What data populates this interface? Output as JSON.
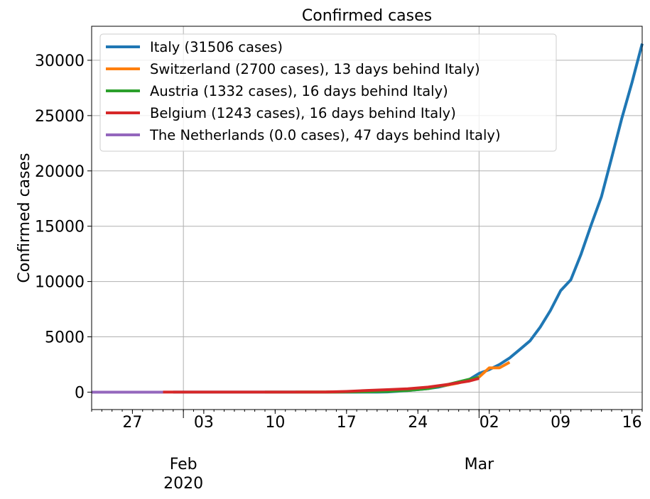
{
  "chart_data": {
    "type": "line",
    "title": "Confirmed cases",
    "xlabel": "",
    "ylabel": "Confirmed cases",
    "xlim": [
      "2020-01-23",
      "2020-03-17"
    ],
    "ylim": [
      -1575,
      33075
    ],
    "grid": true,
    "legend_position": "top-left",
    "y_ticks": [
      0,
      5000,
      10000,
      15000,
      20000,
      25000,
      30000
    ],
    "y_tick_labels": [
      "0",
      "5000",
      "10000",
      "15000",
      "20000",
      "25000",
      "30000"
    ],
    "x_major_ticks": [
      "2020-02-01",
      "2020-03-01"
    ],
    "x_ticks": [
      "2020-01-27",
      "2020-02-03",
      "2020-02-10",
      "2020-02-17",
      "2020-02-24",
      "2020-03-02",
      "2020-03-09",
      "2020-03-16"
    ],
    "x_tick_labels": [
      "27",
      "03",
      "10",
      "17",
      "24",
      "02",
      "09",
      "16"
    ],
    "x_secondary_labels": [
      {
        "x": "2020-02-01",
        "lines": [
          "Feb",
          "2020"
        ]
      },
      {
        "x": "2020-03-01",
        "lines": [
          "Mar"
        ]
      }
    ],
    "series": [
      {
        "name": "Italy (31506 cases)",
        "color": "#1f77b4",
        "points": [
          [
            "2020-01-31",
            2
          ],
          [
            "2020-02-10",
            3
          ],
          [
            "2020-02-20",
            3
          ],
          [
            "2020-02-21",
            20
          ],
          [
            "2020-02-22",
            79
          ],
          [
            "2020-02-23",
            150
          ],
          [
            "2020-02-24",
            229
          ],
          [
            "2020-02-25",
            322
          ],
          [
            "2020-02-26",
            453
          ],
          [
            "2020-02-27",
            655
          ],
          [
            "2020-02-28",
            888
          ],
          [
            "2020-02-29",
            1128
          ],
          [
            "2020-03-01",
            1694
          ],
          [
            "2020-03-02",
            2036
          ],
          [
            "2020-03-03",
            2502
          ],
          [
            "2020-03-04",
            3089
          ],
          [
            "2020-03-05",
            3858
          ],
          [
            "2020-03-06",
            4636
          ],
          [
            "2020-03-07",
            5883
          ],
          [
            "2020-03-08",
            7375
          ],
          [
            "2020-03-09",
            9172
          ],
          [
            "2020-03-10",
            10149
          ],
          [
            "2020-03-11",
            12462
          ],
          [
            "2020-03-12",
            15113
          ],
          [
            "2020-03-13",
            17660
          ],
          [
            "2020-03-14",
            21157
          ],
          [
            "2020-03-15",
            24747
          ],
          [
            "2020-03-16",
            27980
          ],
          [
            "2020-03-17",
            31506
          ]
        ]
      },
      {
        "name": "Switzerland (2700 cases), 13 days behind Italy)",
        "color": "#ff7f0e",
        "points": [
          [
            "2020-02-12",
            1
          ],
          [
            "2020-02-16",
            10
          ],
          [
            "2020-02-20",
            60
          ],
          [
            "2020-02-23",
            180
          ],
          [
            "2020-02-25",
            370
          ],
          [
            "2020-02-27",
            650
          ],
          [
            "2020-02-28",
            830
          ],
          [
            "2020-02-29",
            1100
          ],
          [
            "2020-03-01",
            1360
          ],
          [
            "2020-03-02",
            2200
          ],
          [
            "2020-03-03",
            2200
          ],
          [
            "2020-03-04",
            2700
          ]
        ]
      },
      {
        "name": "Austria (1332 cases), 16 days behind Italy)",
        "color": "#2ca02c",
        "points": [
          [
            "2020-02-09",
            2
          ],
          [
            "2020-02-15",
            5
          ],
          [
            "2020-02-18",
            20
          ],
          [
            "2020-02-21",
            60
          ],
          [
            "2020-02-23",
            150
          ],
          [
            "2020-02-25",
            320
          ],
          [
            "2020-02-27",
            700
          ],
          [
            "2020-02-29",
            1150
          ],
          [
            "2020-03-01",
            1332
          ]
        ]
      },
      {
        "name": "Belgium (1243 cases), 16 days behind Italy)",
        "color": "#d62728",
        "points": [
          [
            "2020-01-30",
            1
          ],
          [
            "2020-02-10",
            2
          ],
          [
            "2020-02-15",
            10
          ],
          [
            "2020-02-17",
            60
          ],
          [
            "2020-02-19",
            150
          ],
          [
            "2020-02-21",
            220
          ],
          [
            "2020-02-23",
            300
          ],
          [
            "2020-02-25",
            450
          ],
          [
            "2020-02-27",
            700
          ],
          [
            "2020-02-29",
            1000
          ],
          [
            "2020-03-01",
            1243
          ]
        ]
      },
      {
        "name": "The Netherlands (0.0 cases), 47 days behind Italy)",
        "color": "#9467bd",
        "points": [
          [
            "2020-01-23",
            0
          ],
          [
            "2020-01-30",
            0
          ]
        ]
      }
    ]
  }
}
